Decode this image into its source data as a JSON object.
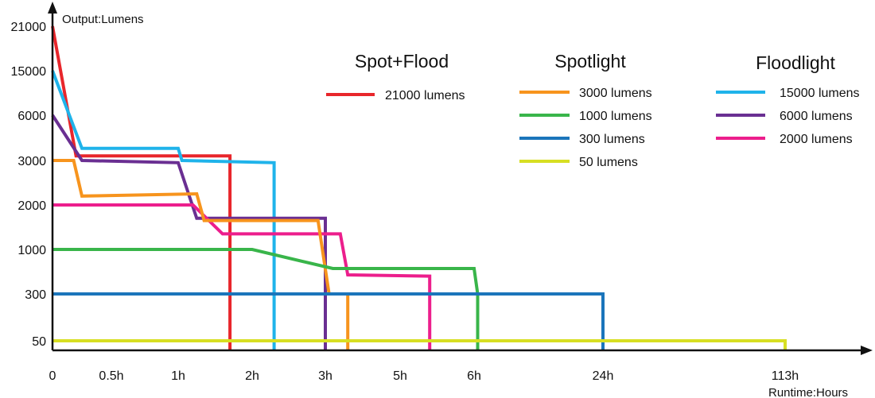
{
  "chart_data": {
    "type": "line",
    "ylabel": "Output:Lumens",
    "xlabel": "Runtime:Hours",
    "y_ticks": [
      "50",
      "300",
      "1000",
      "2000",
      "3000",
      "6000",
      "15000",
      "21000"
    ],
    "x_ticks": [
      {
        "label": "0",
        "hours": 0
      },
      {
        "label": "0.5h",
        "hours": 0.5
      },
      {
        "label": "1h",
        "hours": 1
      },
      {
        "label": "2h",
        "hours": 2
      },
      {
        "label": "3h",
        "hours": 3
      },
      {
        "label": "5h",
        "hours": 5
      },
      {
        "label": "6h",
        "hours": 6
      },
      {
        "label": "24h",
        "hours": 24
      },
      {
        "label": "113h",
        "hours": 113
      }
    ],
    "grid": false,
    "legend_groups": [
      {
        "title": "Spot+Flood",
        "series": [
          "21000 lumens"
        ]
      },
      {
        "title": "Spotlight",
        "series": [
          "3000 lumens",
          "1000 lumens",
          "300 lumens",
          "50 lumens"
        ]
      },
      {
        "title": "Floodlight",
        "series": [
          "15000 lumens",
          "6000 lumens",
          "2000 lumens"
        ]
      }
    ],
    "series": [
      {
        "name": "21000 lumens",
        "color": "#e8262b",
        "points": [
          [
            0,
            21000
          ],
          [
            0.2,
            3300
          ],
          [
            1.7,
            3300
          ],
          [
            1.7,
            0
          ]
        ]
      },
      {
        "name": "15000 lumens",
        "color": "#1fb3ea",
        "points": [
          [
            0,
            15000
          ],
          [
            0.25,
            3800
          ],
          [
            1,
            3800
          ],
          [
            1.05,
            3000
          ],
          [
            2.3,
            2950
          ],
          [
            2.3,
            0
          ]
        ]
      },
      {
        "name": "6000 lumens",
        "color": "#6a2f92",
        "points": [
          [
            0,
            6000
          ],
          [
            0.25,
            3000
          ],
          [
            1,
            2950
          ],
          [
            1.25,
            1700
          ],
          [
            3,
            1700
          ],
          [
            3,
            0
          ]
        ]
      },
      {
        "name": "2000 lumens",
        "color": "#ec1e8c",
        "points": [
          [
            0,
            2000
          ],
          [
            1.2,
            2000
          ],
          [
            1.6,
            1350
          ],
          [
            3.4,
            1350
          ],
          [
            3.6,
            600
          ],
          [
            5.4,
            580
          ],
          [
            5.4,
            0
          ]
        ]
      },
      {
        "name": "3000 lumens",
        "color": "#f7941d",
        "points": [
          [
            0,
            3000
          ],
          [
            0.18,
            3000
          ],
          [
            0.25,
            2200
          ],
          [
            1.25,
            2250
          ],
          [
            1.35,
            1650
          ],
          [
            2.9,
            1650
          ],
          [
            3.1,
            300
          ],
          [
            3.6,
            300
          ],
          [
            3.6,
            0
          ]
        ]
      },
      {
        "name": "1000 lumens",
        "color": "#39b54a",
        "points": [
          [
            0,
            1000
          ],
          [
            2,
            1000
          ],
          [
            3.2,
            700
          ],
          [
            6,
            700
          ],
          [
            6.5,
            300
          ],
          [
            6.5,
            0
          ]
        ]
      },
      {
        "name": "300 lumens",
        "color": "#1b75bb",
        "points": [
          [
            0,
            300
          ],
          [
            24,
            300
          ],
          [
            24,
            0
          ]
        ]
      },
      {
        "name": "50 lumens",
        "color": "#d7df23",
        "points": [
          [
            0,
            50
          ],
          [
            113,
            50
          ],
          [
            113,
            0
          ]
        ]
      }
    ]
  }
}
